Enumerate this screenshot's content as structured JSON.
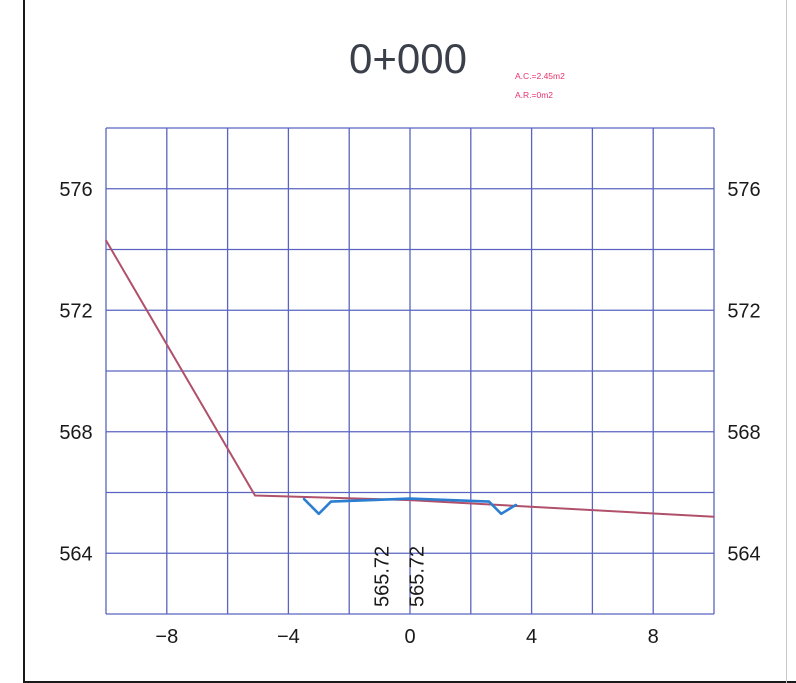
{
  "chart_data": {
    "type": "line",
    "title": "0+000",
    "annotations": [
      "A.C.=2.45m2",
      "A.R.=0m2"
    ],
    "xlim": [
      -10,
      10
    ],
    "ylim": [
      562,
      578
    ],
    "x_ticks": [
      -8,
      -4,
      0,
      4,
      8
    ],
    "x_tick_labels": [
      "−8",
      "−4",
      "0",
      "4",
      "8"
    ],
    "y_ticks": [
      564,
      568,
      572,
      576
    ],
    "y_tick_labels": [
      "564",
      "568",
      "572",
      "576"
    ],
    "grid": true,
    "series": [
      {
        "color": "#b0506a",
        "x": [
          -10,
          -5.1,
          0,
          10
        ],
        "y": [
          574.3,
          565.9,
          565.75,
          565.2
        ]
      },
      {
        "color": "#2c7fd0",
        "x": [
          -3.5,
          -3.0,
          -2.6,
          0,
          2.6,
          3.0,
          3.5
        ],
        "y": [
          565.8,
          565.3,
          565.7,
          565.8,
          565.7,
          565.3,
          565.6
        ]
      }
    ],
    "data_labels": [
      {
        "text": "565.72",
        "x": -0.7
      },
      {
        "text": "565.72",
        "x": 0.45
      }
    ],
    "colors": {
      "grid": "#5a64c0",
      "title": "#3a3f4a",
      "annotation": "#e8306a",
      "axis_text": "#1a1a1a"
    }
  }
}
